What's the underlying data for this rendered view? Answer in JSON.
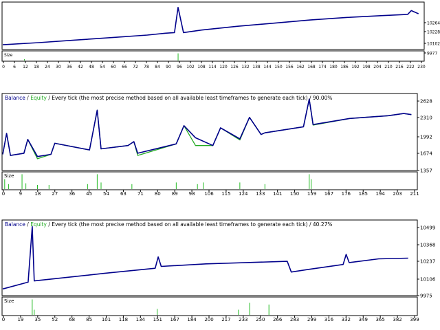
{
  "colors": {
    "balance": "#00008b",
    "equity": "#22aa22",
    "size": "#22bb22",
    "frame": "#000000",
    "grid": "#c8c8c8"
  },
  "charts": [
    {
      "id": "c1",
      "header": null,
      "y_labels": [
        "10264",
        "10228",
        "10102",
        "9977"
      ],
      "size_label": "Size",
      "x_labels": [
        "0",
        "6",
        "12",
        "18",
        "24",
        "30",
        "36",
        "42",
        "48",
        "54",
        "60",
        "66",
        "72",
        "78",
        "84",
        "90",
        "96",
        "102",
        "108",
        "114",
        "120",
        "126",
        "132",
        "138",
        "144",
        "150",
        "156",
        "162",
        "168",
        "174",
        "180",
        "186",
        "192",
        "198",
        "204",
        "210",
        "216",
        "222",
        "228"
      ],
      "x_display": [
        "0",
        "6",
        "12",
        "18",
        "24",
        "30",
        "36",
        "42",
        "48",
        "54",
        "60",
        "66",
        "72",
        "78",
        "84",
        "90",
        "96",
        "102",
        "108",
        "114",
        "120",
        "126",
        "132",
        "138",
        "144",
        "150",
        "156",
        "162",
        "168",
        "174",
        "180",
        "186",
        "192",
        "198",
        "204",
        "210",
        "216",
        "222",
        "230"
      ]
    },
    {
      "id": "c2",
      "header": {
        "balance": "Balance",
        "sep": " / ",
        "equity": "Equity",
        "rest": " / Every tick (the most precise method based on all available least timeframes to generate each tick) / 90.00%"
      },
      "y_labels": [
        "2628",
        "2310",
        "1992",
        "1674",
        "1357"
      ],
      "size_label": "Size",
      "x_labels": [
        "0",
        "9",
        "18",
        "27",
        "36",
        "45",
        "54",
        "63",
        "71",
        "80",
        "89",
        "98",
        "106",
        "115",
        "124",
        "133",
        "141",
        "150",
        "159",
        "167",
        "176",
        "185",
        "194",
        "203",
        "211"
      ]
    },
    {
      "id": "c3",
      "header": {
        "balance": "Balance",
        "sep": " / ",
        "equity": "Equity",
        "rest": " / Every tick (the most precise method based on all available least timeframes to generate each tick) / 40.27%"
      },
      "y_labels": [
        "10499",
        "10368",
        "10237",
        "10106",
        "9975"
      ],
      "size_label": "Size",
      "x_labels": [
        "0",
        "19",
        "35",
        "52",
        "68",
        "85",
        "101",
        "118",
        "134",
        "151",
        "167",
        "184",
        "200",
        "217",
        "233",
        "250",
        "266",
        "283",
        "299",
        "316",
        "332",
        "349",
        "365",
        "382",
        "399"
      ]
    }
  ],
  "chart_data": [
    {
      "type": "line",
      "title": "",
      "xlabel": "",
      "ylabel": "",
      "x": [
        0,
        20,
        40,
        60,
        80,
        90,
        95,
        97,
        100,
        110,
        130,
        150,
        170,
        190,
        210,
        224,
        226,
        230
      ],
      "series": [
        {
          "name": "",
          "values": [
            9993,
            10010,
            10030,
            10050,
            10070,
            10085,
            10090,
            10290,
            10090,
            10110,
            10140,
            10165,
            10190,
            10210,
            10225,
            10235,
            10265,
            10240
          ]
        }
      ],
      "ylim": [
        9977,
        10300
      ]
    },
    {
      "type": "line",
      "title": "",
      "xlabel": "",
      "ylabel": "",
      "x": [
        0,
        2,
        4,
        11,
        13,
        18,
        25,
        27,
        45,
        49,
        51,
        65,
        68,
        70,
        90,
        94,
        100,
        109,
        113,
        123,
        128,
        134,
        136,
        156,
        159,
        161,
        180,
        200,
        208,
        212
      ],
      "series": [
        {
          "name": "Balance",
          "values": [
            1600,
            1980,
            1580,
            1620,
            1870,
            1560,
            1600,
            1800,
            1680,
            2400,
            1700,
            1760,
            1830,
            1620,
            1790,
            2120,
            1900,
            1760,
            2080,
            1880,
            2270,
            1960,
            1990,
            2100,
            2600,
            2140,
            2250,
            2300,
            2340,
            2320
          ]
        },
        {
          "name": "Equity",
          "values": [
            1600,
            1980,
            1580,
            1620,
            1870,
            1520,
            1600,
            1800,
            1680,
            2400,
            1700,
            1760,
            1830,
            1580,
            1790,
            2120,
            1760,
            1760,
            2080,
            1860,
            2270,
            1960,
            1990,
            2100,
            2600,
            2130,
            2250,
            2300,
            2340,
            2320
          ]
        }
      ],
      "ylim": [
        1357,
        2628
      ]
    },
    {
      "type": "line",
      "title": "",
      "xlabel": "",
      "ylabel": "",
      "x": [
        0,
        25,
        29,
        31,
        100,
        150,
        153,
        156,
        200,
        280,
        284,
        300,
        335,
        338,
        341,
        370,
        399
      ],
      "series": [
        {
          "name": "Balance",
          "values": [
            10006,
            10060,
            10500,
            10070,
            10130,
            10170,
            10260,
            10185,
            10205,
            10225,
            10140,
            10160,
            10200,
            10280,
            10215,
            10245,
            10250
          ]
        }
      ],
      "ylim": [
        9975,
        10520
      ]
    }
  ]
}
